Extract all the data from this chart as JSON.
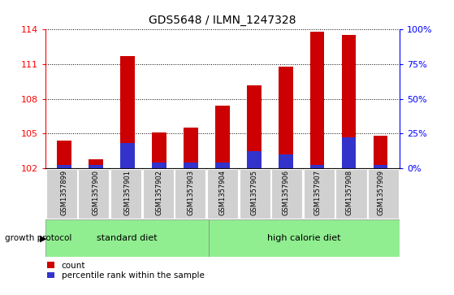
{
  "title": "GDS5648 / ILMN_1247328",
  "samples": [
    "GSM1357899",
    "GSM1357900",
    "GSM1357901",
    "GSM1357902",
    "GSM1357903",
    "GSM1357904",
    "GSM1357905",
    "GSM1357906",
    "GSM1357907",
    "GSM1357908",
    "GSM1357909"
  ],
  "count_values": [
    104.4,
    102.8,
    111.7,
    105.1,
    105.5,
    107.4,
    109.2,
    110.8,
    113.8,
    113.5,
    104.8
  ],
  "percentile_values": [
    2,
    2,
    18,
    4,
    4,
    4,
    12,
    10,
    2,
    22,
    2
  ],
  "ylim_left": [
    102,
    114
  ],
  "ylim_right": [
    0,
    100
  ],
  "yticks_left": [
    102,
    105,
    108,
    111,
    114
  ],
  "yticks_right": [
    0,
    25,
    50,
    75,
    100
  ],
  "bar_color": "#cc0000",
  "blue_color": "#3333cc",
  "bar_bottom": 102,
  "standard_diet_label": "standard diet",
  "high_calorie_label": "high calorie diet",
  "group_color": "#90EE90",
  "growth_protocol_label": "growth protocol",
  "legend_count_label": "count",
  "legend_percentile_label": "percentile rank within the sample",
  "bar_width": 0.45,
  "tick_area_color": "#d0d0d0"
}
